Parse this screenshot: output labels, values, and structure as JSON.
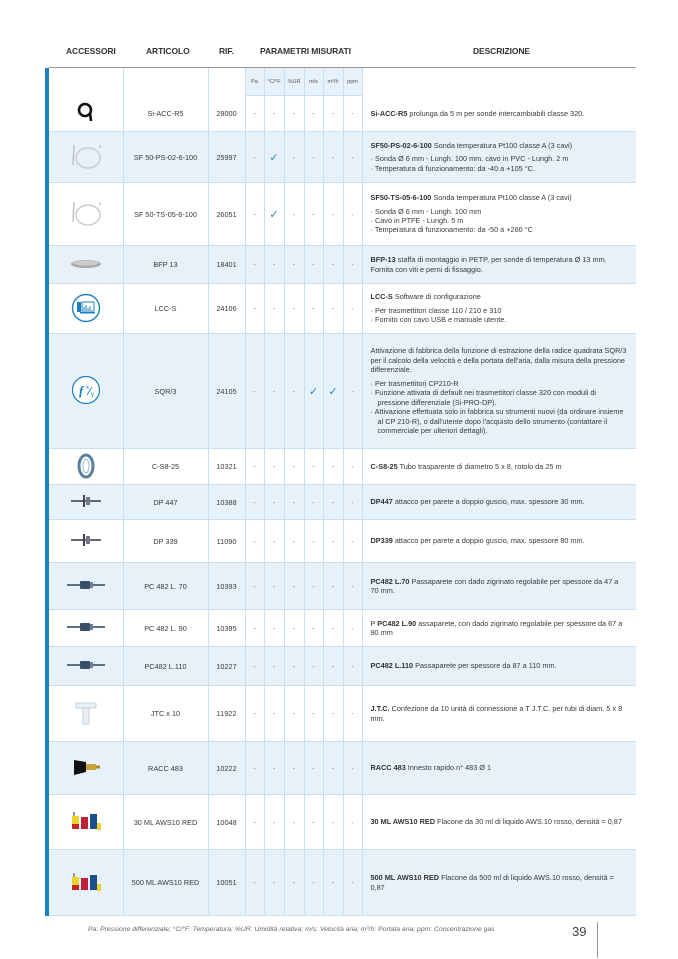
{
  "header": {
    "accessori": "ACCESSORI",
    "articolo": "ARTICOLO",
    "rif": "RIF.",
    "parametri": "PARAMETRI MISURATI",
    "descrizione": "DESCRIZIONE"
  },
  "params": [
    "Pa",
    "°C/°F",
    "%UR",
    "m/s",
    "m³/h",
    "ppm"
  ],
  "accent_color": "#1f7fc1",
  "row_bg_alt": "#e6f1fa",
  "rows": [
    {
      "icon": "cable-coil-icon",
      "articolo": "Si-ACC-R5",
      "rif": "28000",
      "checks": [
        0,
        0,
        0,
        0,
        0,
        0
      ],
      "bold": "Si-ACC-R5",
      "text": " prolunga da 5 m per sonde intercambiabili classe 320.",
      "bullets": []
    },
    {
      "icon": "temperature-probe-icon",
      "articolo": "SF 50-PS-02-6-100",
      "rif": "25997",
      "checks": [
        0,
        1,
        0,
        0,
        0,
        0
      ],
      "bold": "SF50-PS-02-6-100",
      "text": " Sonda temperatura Pt100 classe A (3 cavi)",
      "bullets": [
        "Sonda Ø 6 mm - Lungh. 100 mm. cavo in PVC - Lungh. 2 m",
        "Temperatura di funzionamento: da -40 a +105 °C."
      ]
    },
    {
      "icon": "temperature-probe-icon",
      "articolo": "SF 50-TS-05-6-100",
      "rif": "26051",
      "checks": [
        0,
        1,
        0,
        0,
        0,
        0
      ],
      "bold": "SF50-TS-05-6-100",
      "text": " Sonda temperatura Pt100 classe A (3 cavi)",
      "bullets": [
        "Sonda Ø 6 mm - Lungh. 100 mm",
        "Cavo in PTFE - Lungh. 5 m",
        "Temperatura di funzionamento: da -50 a +260 °C"
      ]
    },
    {
      "icon": "mounting-bracket-icon",
      "articolo": "BFP 13",
      "rif": "18401",
      "checks": [
        0,
        0,
        0,
        0,
        0,
        0
      ],
      "bold": "BFP-13",
      "text": " staffa di montaggio in PETP, per sonde di temperatura Ø 13 mm. Fornita con viti e perni di fissaggio.",
      "bullets": []
    },
    {
      "icon": "software-icon",
      "articolo": "LCC-S",
      "rif": "24106",
      "checks": [
        0,
        0,
        0,
        0,
        0,
        0
      ],
      "bold": "LCC-S",
      "text": " Software di configurazione",
      "bullets": [
        "Per trasmettitori classe 110 / 210 e 310",
        "Fornito con cavo USB e manuale utente."
      ]
    },
    {
      "icon": "function-icon",
      "articolo": "SQR/3",
      "rif": "24105",
      "checks": [
        0,
        0,
        0,
        1,
        1,
        0
      ],
      "bold": "",
      "text": "Attivazione di fabbrica della funzione di estrazione della radice quadrata SQR/3 per il calcolo della velocità e della portata dell'aria, dalla misura della pressione differenziale.",
      "bullets": [
        "Per trasmettitori CP210-R",
        "Funzione attivata di default nei trasmettitori classe 320 con moduli di pressione differenziale (Si-PRO-DP).",
        "Attivazione effettuata solo in fabbrica su strumenti nuovi (da ordinare insieme al CP 210-R), o dall'utente dopo l'acquisto dello strumento (contattare il commerciale per ulteriori dettagli)."
      ]
    },
    {
      "icon": "tube-roll-icon",
      "articolo": "C-S8-25",
      "rif": "10321",
      "checks": [
        0,
        0,
        0,
        0,
        0,
        0
      ],
      "bold": "C-S8-25",
      "text": " Tubo trasparente di diametro 5 x 8, rotolo da 25 m",
      "bullets": []
    },
    {
      "icon": "wall-fitting-icon",
      "articolo": "DP 447",
      "rif": "10388",
      "checks": [
        0,
        0,
        0,
        0,
        0,
        0
      ],
      "bold": "DP447",
      "text": " attacco per parete a doppio guscio, max. spessore 30 mm.",
      "bullets": []
    },
    {
      "icon": "wall-fitting-icon",
      "articolo": "DP 339",
      "rif": "11090",
      "checks": [
        0,
        0,
        0,
        0,
        0,
        0
      ],
      "bold": "DP339",
      "text": " attacco per parete a doppio guscio, max. spessore 80 mm.",
      "bullets": []
    },
    {
      "icon": "wall-passage-icon",
      "articolo": "PC 482 L. 70",
      "rif": "10393",
      "checks": [
        0,
        0,
        0,
        0,
        0,
        0
      ],
      "bold": "PC482 L.70",
      "text": " Passaparete con dado zigrinato regolabile per spessore da 47 a 70 mm.",
      "bullets": []
    },
    {
      "icon": "wall-passage-icon",
      "articolo": "PC 482 L. 90",
      "rif": "10395",
      "checks": [
        0,
        0,
        0,
        0,
        0,
        0
      ],
      "prefix": "P ",
      "bold": "PC482 L.90",
      "text": " assaparete, con dado zigrinato regolabile per spessore da 67 a 90 mm",
      "bullets": []
    },
    {
      "icon": "wall-passage-icon",
      "articolo": "PC482 L.110",
      "rif": "10227",
      "checks": [
        0,
        0,
        0,
        0,
        0,
        0
      ],
      "bold": "PC482 L.110",
      "text": " Passaparete per spessore da 87 a 110 mm.",
      "bullets": []
    },
    {
      "icon": "t-connector-icon",
      "articolo": "JTC x 10",
      "rif": "11922",
      "checks": [
        0,
        0,
        0,
        0,
        0,
        0
      ],
      "bold": "J.T.C.",
      "text": " Confezione da 10 unità di connessione a T J.T.C. per tubi di diam. 5 x 8 mm.",
      "bullets": []
    },
    {
      "icon": "quick-coupling-icon",
      "articolo": "RACC 483",
      "rif": "10222",
      "checks": [
        0,
        0,
        0,
        0,
        0,
        0
      ],
      "bold": "RACC 483",
      "text": " Innesto rapido n° 483 Ø 1",
      "bullets": []
    },
    {
      "icon": "liquid-bottles-icon",
      "articolo": "30 ML AWS10 RED",
      "rif": "10048",
      "checks": [
        0,
        0,
        0,
        0,
        0,
        0
      ],
      "bold": "30 ML AWS10 RED",
      "text": " Flacone da 30 ml di liquido AWS.10 rosso, densità = 0,87",
      "bullets": []
    },
    {
      "icon": "liquid-bottles-icon",
      "articolo": "500 ML AWS10 RED",
      "rif": "10051",
      "checks": [
        0,
        0,
        0,
        0,
        0,
        0
      ],
      "bold": "500 ML AWS10 RED",
      "text": " Flacone da 500 ml di liquido AWS.10 rosso, densità = 0,87",
      "bullets": []
    }
  ],
  "dash": "-",
  "check": "✓",
  "footer": {
    "legend": "Pa: Pressione differenziale; °C/°F: Temperatura; %UR: Umidità relativa; m/s: Velocità aria; m³/h: Portata aria; ppm: Concentrazione gas",
    "page_number": "39"
  }
}
